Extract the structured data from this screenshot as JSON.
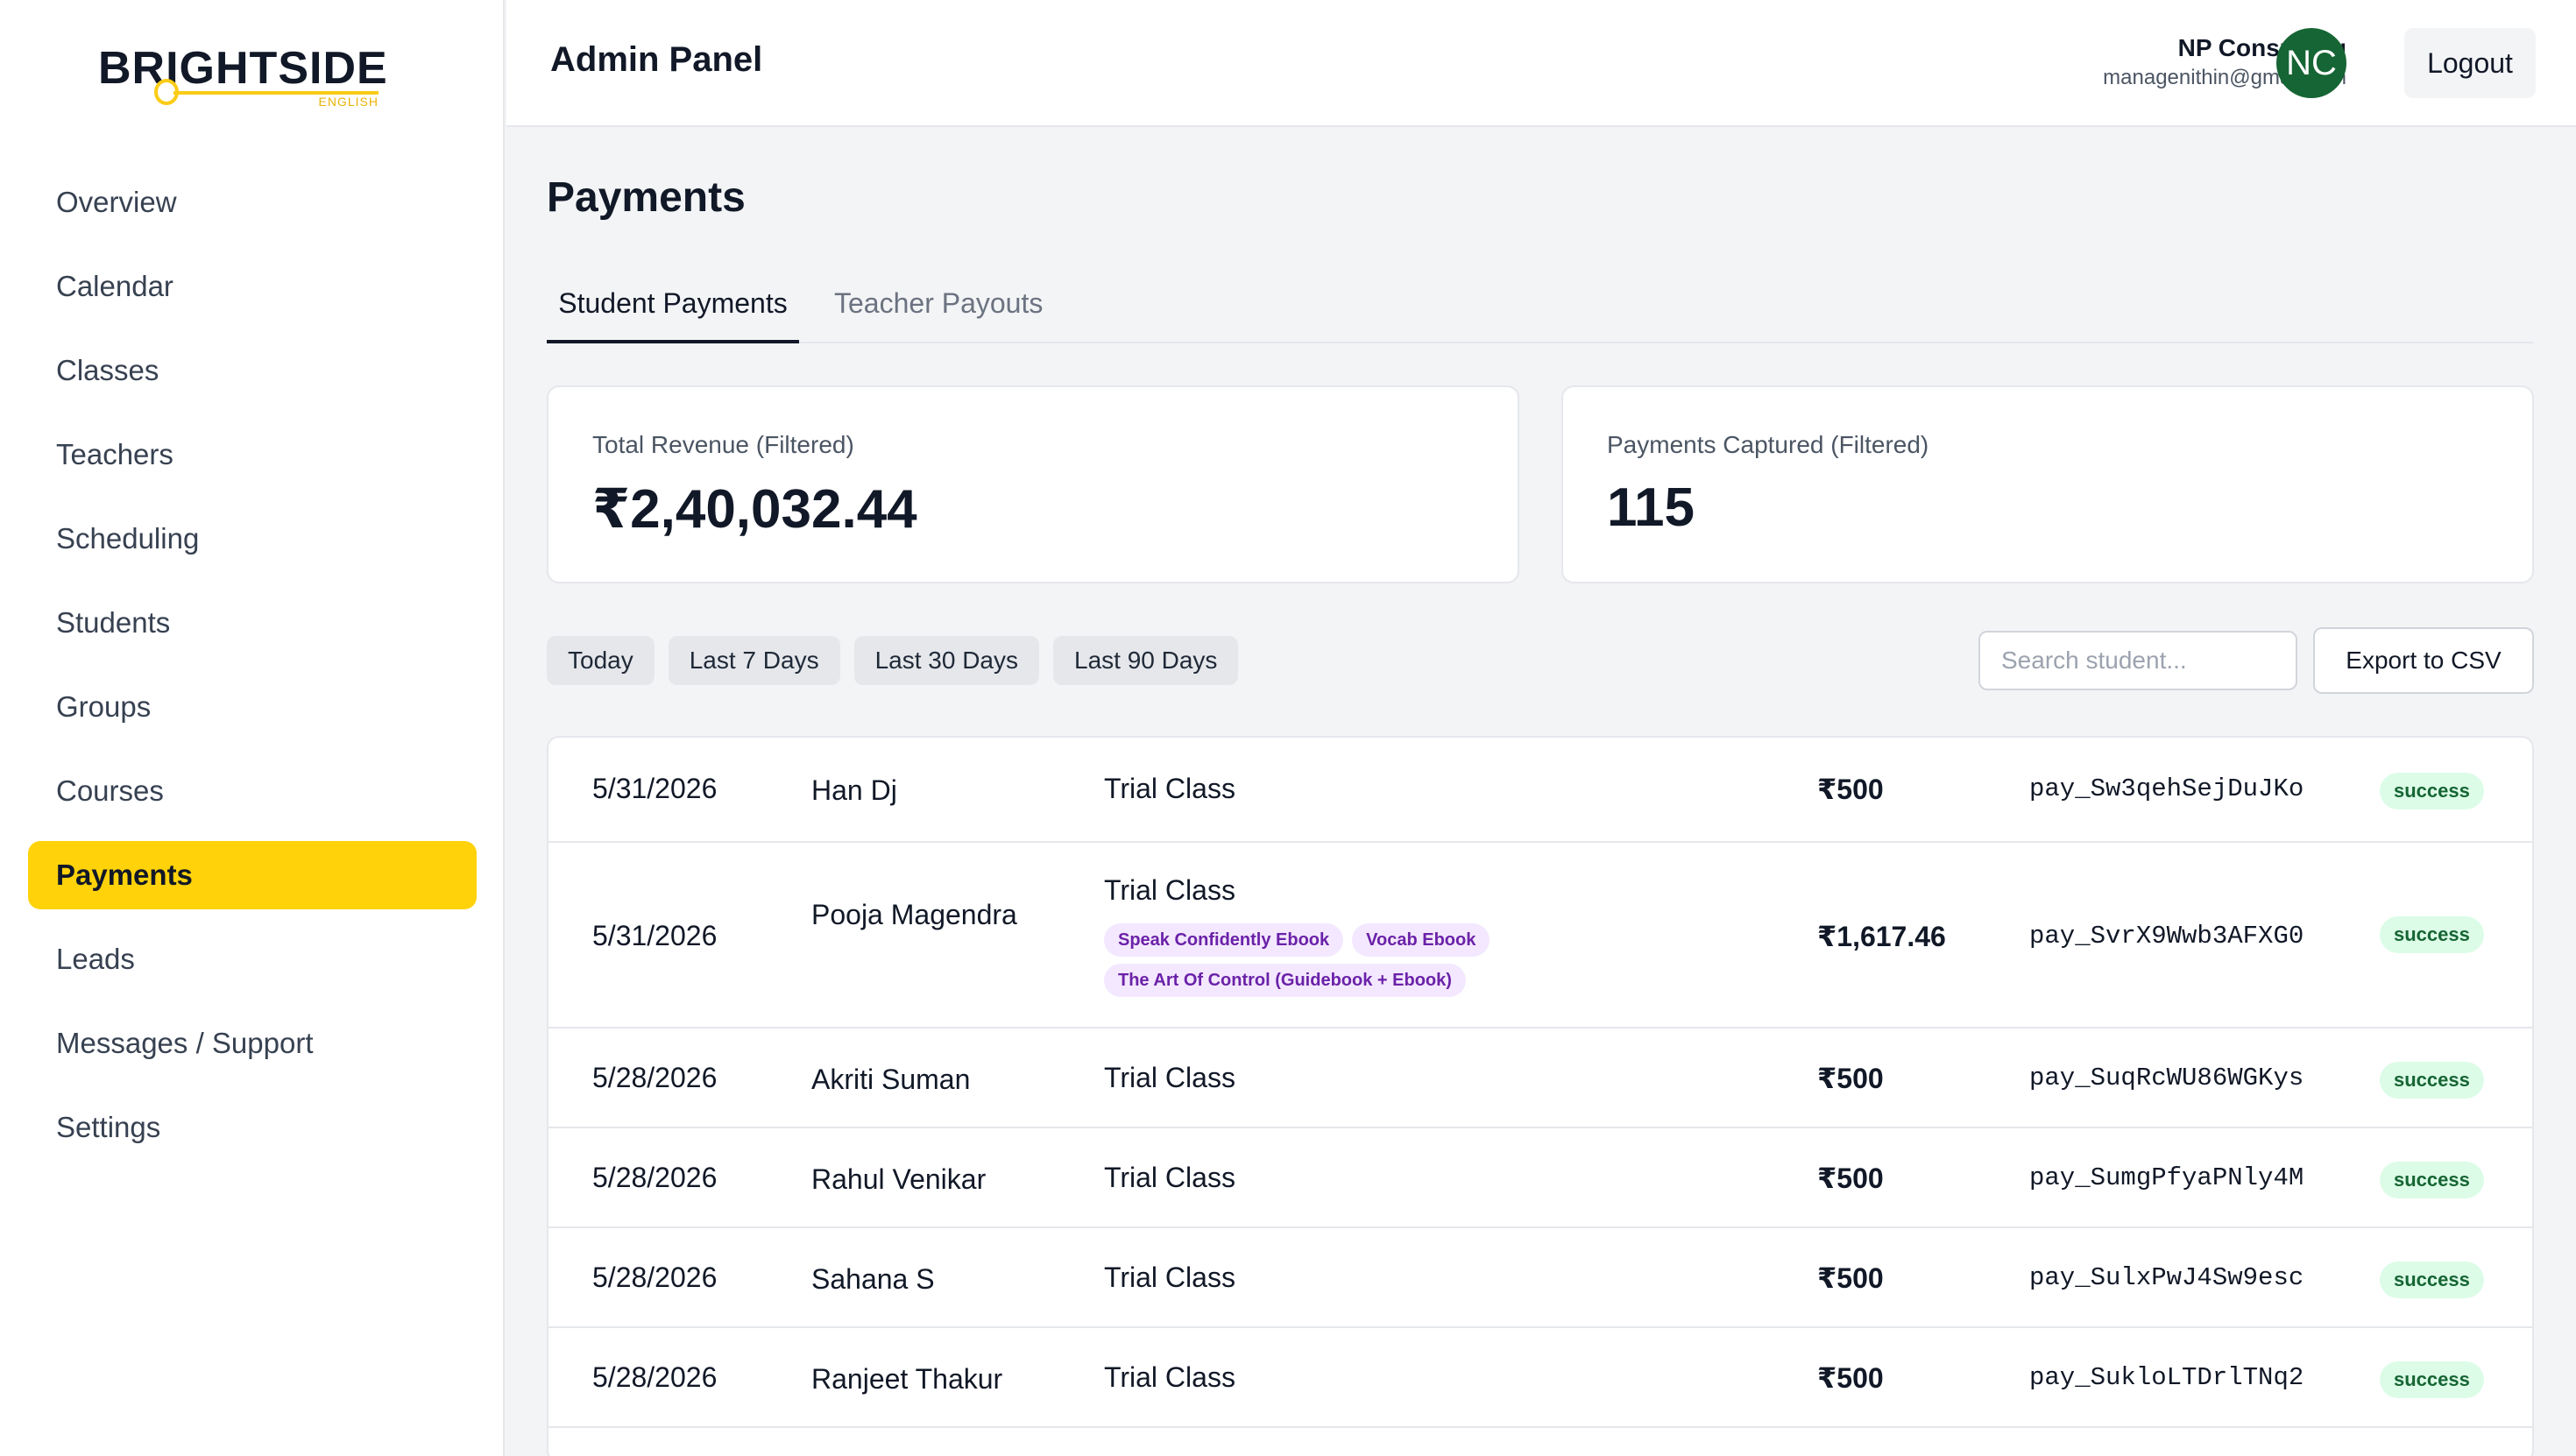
{
  "brand": {
    "name": "BRIGHTSIDE",
    "sub": "ENGLISH",
    "accent": "#ffd20a"
  },
  "sidebar": {
    "items": [
      {
        "label": "Overview"
      },
      {
        "label": "Calendar"
      },
      {
        "label": "Classes"
      },
      {
        "label": "Teachers"
      },
      {
        "label": "Scheduling"
      },
      {
        "label": "Students"
      },
      {
        "label": "Groups"
      },
      {
        "label": "Courses"
      },
      {
        "label": "Payments",
        "active": true
      },
      {
        "label": "Leads"
      },
      {
        "label": "Messages / Support"
      },
      {
        "label": "Settings"
      }
    ]
  },
  "header": {
    "title": "Admin Panel",
    "user_name": "NP Consulting",
    "user_email": "managenithin@gmail.com",
    "avatar_initials": "NC",
    "avatar_color": "#166534",
    "logout_label": "Logout"
  },
  "main": {
    "title": "Payments",
    "tabs": [
      {
        "label": "Student Payments",
        "active": true
      },
      {
        "label": "Teacher Payouts",
        "active": false
      }
    ],
    "stats": [
      {
        "label": "Total Revenue (Filtered)",
        "value": "₹2,40,032.44"
      },
      {
        "label": "Payments Captured (Filtered)",
        "value": "115"
      }
    ],
    "filters": [
      "Today",
      "Last 7 Days",
      "Last 30 Days",
      "Last 90 Days"
    ],
    "search_placeholder": "Search student...",
    "export_label": "Export to CSV",
    "status_color": "#dcfce7",
    "rows": [
      {
        "date": "5/31/2026",
        "name": "Han Dj",
        "item": "Trial Class",
        "amount": "₹500",
        "payment_id": "pay_Sw3qehSejDuJKo",
        "status": "success"
      },
      {
        "date": "5/31/2026",
        "name": "Pooja Magendra",
        "item": "Trial Class",
        "tags": [
          "Speak Confidently Ebook",
          "Vocab Ebook",
          "The Art Of Control (Guidebook + Ebook)"
        ],
        "amount": "₹1,617.46",
        "payment_id": "pay_SvrX9Wwb3AFXG0",
        "status": "success"
      },
      {
        "date": "5/28/2026",
        "name": "Akriti Suman",
        "item": "Trial Class",
        "amount": "₹500",
        "payment_id": "pay_SuqRcWU86WGKys",
        "status": "success"
      },
      {
        "date": "5/28/2026",
        "name": "Rahul Venikar",
        "item": "Trial Class",
        "amount": "₹500",
        "payment_id": "pay_SumgPfyaPNly4M",
        "status": "success"
      },
      {
        "date": "5/28/2026",
        "name": "Sahana S",
        "item": "Trial Class",
        "amount": "₹500",
        "payment_id": "pay_SulxPwJ4Sw9esc",
        "status": "success"
      },
      {
        "date": "5/28/2026",
        "name": "Ranjeet Thakur",
        "item": "Trial Class",
        "amount": "₹500",
        "payment_id": "pay_SukloLTDrlTNq2",
        "status": "success"
      }
    ]
  }
}
